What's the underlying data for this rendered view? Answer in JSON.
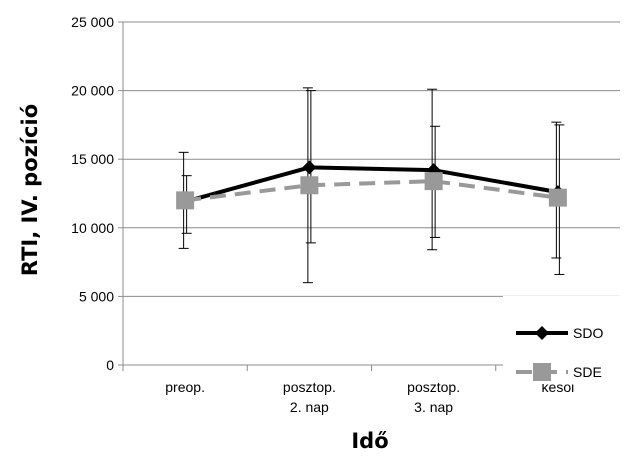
{
  "chart_data": {
    "type": "line",
    "title": "",
    "xlabel": "Idő",
    "ylabel": "RTI, IV. pozíció",
    "categories": [
      [
        "preop."
      ],
      [
        "posztop.",
        "2. nap"
      ],
      [
        "posztop.",
        "3. nap"
      ],
      [
        "késői"
      ]
    ],
    "ylim": [
      0,
      25000
    ],
    "yticks": [
      0,
      5000,
      10000,
      15000,
      20000,
      25000
    ],
    "ytick_labels": [
      "0",
      "5 000",
      "10 000",
      "15 000",
      "20 000",
      "25 000"
    ],
    "grid": "horizontal",
    "legend_position": "right",
    "series": [
      {
        "name": "SDO",
        "values": [
          11900,
          14400,
          14200,
          12600
        ],
        "error_low": [
          8500,
          6000,
          8400,
          7800
        ],
        "error_high": [
          15500,
          20200,
          20100,
          17700
        ],
        "color": "#000000",
        "line_style": "solid",
        "marker": "diamond"
      },
      {
        "name": "SDE",
        "values": [
          12000,
          13100,
          13400,
          12200
        ],
        "error_low": [
          9600,
          8900,
          9300,
          6600
        ],
        "error_high": [
          13800,
          20000,
          17400,
          17500
        ],
        "color": "#999999",
        "line_style": "dashed",
        "marker": "square"
      }
    ]
  }
}
